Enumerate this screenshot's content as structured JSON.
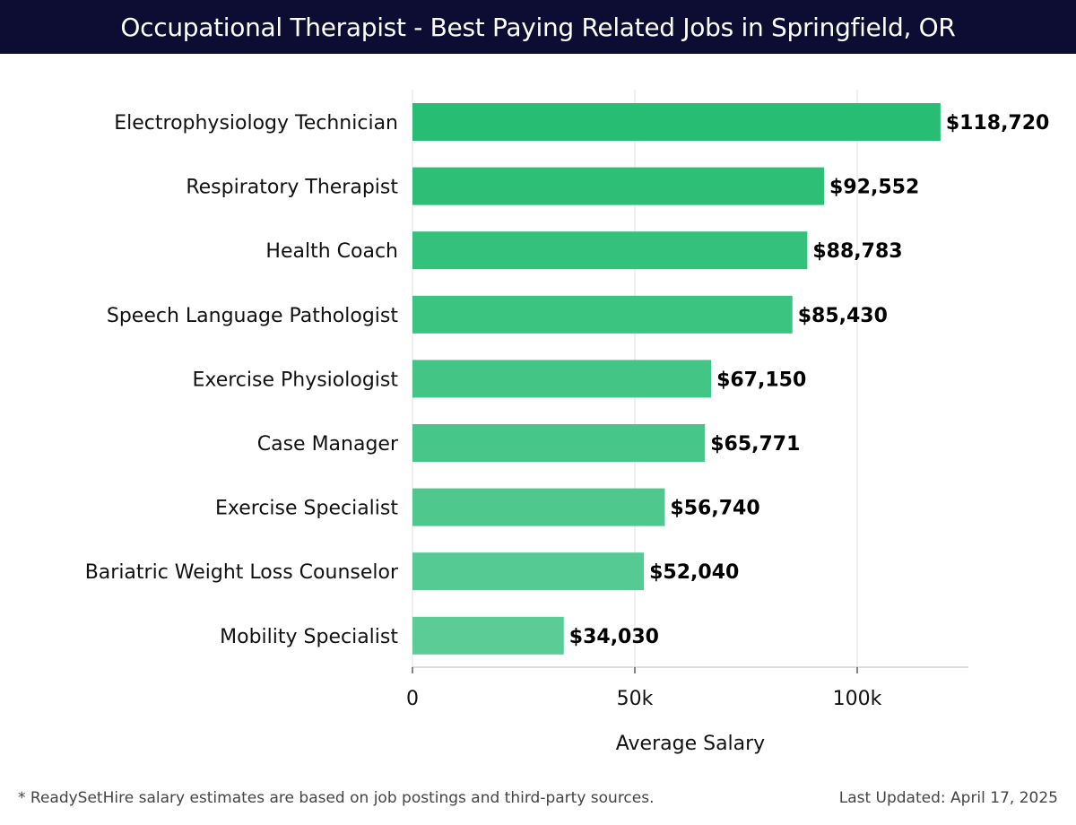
{
  "header": {
    "title": "Occupational Therapist - Best Paying Related Jobs in Springfield, OR"
  },
  "chart_data": {
    "type": "bar",
    "orientation": "horizontal",
    "title": "Occupational Therapist - Best Paying Related Jobs in Springfield, OR",
    "xlabel": "Average Salary",
    "ylabel": "",
    "xlim": [
      0,
      125000
    ],
    "xticks": [
      0,
      50000,
      100000
    ],
    "xtick_labels": [
      "0",
      "50k",
      "100k"
    ],
    "grid": true,
    "categories": [
      "Electrophysiology Technician",
      "Respiratory Therapist",
      "Health Coach",
      "Speech Language Pathologist",
      "Exercise Physiologist",
      "Case Manager",
      "Exercise Specialist",
      "Bariatric Weight Loss Counselor",
      "Mobility Specialist"
    ],
    "values": [
      118720,
      92552,
      88783,
      85430,
      67150,
      65771,
      56740,
      52040,
      34030
    ],
    "value_labels": [
      "$118,720",
      "$92,552",
      "$88,783",
      "$85,430",
      "$67,150",
      "$65,771",
      "$56,740",
      "$52,040",
      "$34,030"
    ],
    "colors": {
      "bar_dark": "#27bd72",
      "bar_light": "#5ccc97",
      "grid": "#e6e6e6",
      "axis": "#cccccc",
      "text": "#111111"
    }
  },
  "footer": {
    "note": "* ReadySetHire salary estimates are based on job postings and third-party sources.",
    "updated": "Last Updated: April 17, 2025"
  }
}
